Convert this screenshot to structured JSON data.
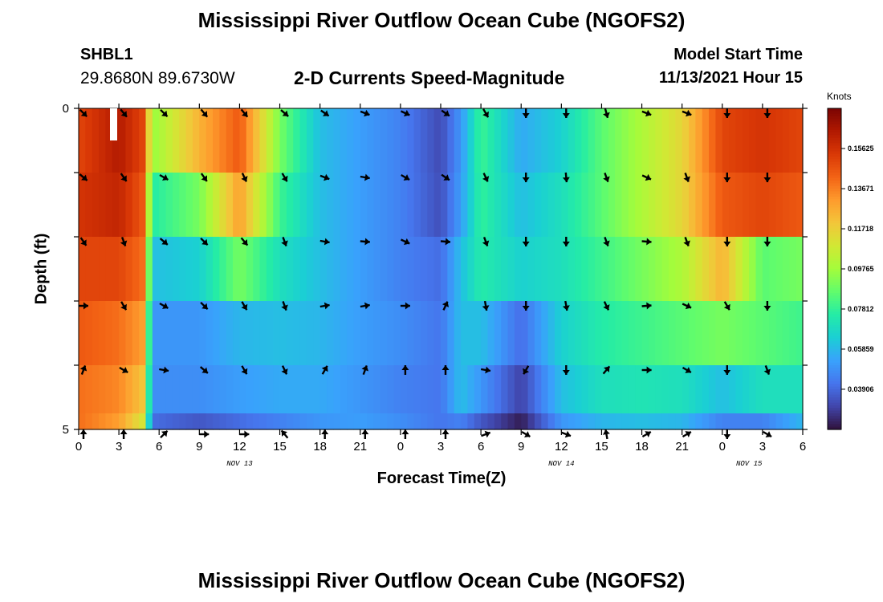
{
  "header": {
    "title": "Mississippi River Outflow Ocean Cube (NGOFS2)",
    "station": "SHBL1",
    "coordinates": "29.8680N  89.6730W",
    "subtitle": "2-D Currents Speed-Magnitude",
    "start_label": "Model Start Time",
    "start_value": "11/13/2021 Hour 15"
  },
  "footer": {
    "title": "Mississippi River Outflow Ocean Cube (NGOFS2)"
  },
  "chart_data": {
    "type": "heatmap",
    "title": "2-D Currents Speed-Magnitude",
    "xlabel": "Forecast Time(Z)",
    "ylabel": "Depth (ft)",
    "x_range_hours": [
      0,
      54
    ],
    "y_range": [
      0,
      5
    ],
    "x_tick_labels": [
      "0",
      "3",
      "6",
      "9",
      "12",
      "15",
      "18",
      "21",
      "0",
      "3",
      "6",
      "9",
      "12",
      "15",
      "18",
      "21",
      "0",
      "3",
      "6"
    ],
    "y_tick_labels": [
      "0",
      "5"
    ],
    "date_labels": [
      {
        "text": "NOV 13",
        "hour": 12
      },
      {
        "text": "NOV 14",
        "hour": 36
      },
      {
        "text": "NOV 15",
        "hour": 50
      }
    ],
    "colorbar": {
      "unit": "Knots",
      "min": 0.0195,
      "max": 0.1758,
      "tick_values": [
        0.15625,
        0.13671,
        0.11718,
        0.09765,
        0.07812,
        0.05859,
        0.03906
      ],
      "tick_labels": [
        "0.15625",
        "0.13671",
        "0.11718",
        "0.09765",
        "0.07812",
        "0.05859",
        "0.03906"
      ],
      "colors": [
        "#30123b",
        "#4145ab",
        "#4675ed",
        "#39a2fc",
        "#1bcfd4",
        "#24eca6",
        "#61fc6c",
        "#a4fc3b",
        "#d1e834",
        "#f3c63a",
        "#fe9b2d",
        "#f36315",
        "#d93806",
        "#b11901",
        "#7a0403"
      ]
    },
    "depth_layers": [
      0.5,
      1.5,
      2.5,
      3.5,
      4.5,
      5.0
    ],
    "speed_nodes_hours": [
      0,
      3,
      4.8,
      5.5,
      9,
      12,
      15,
      18,
      21,
      24,
      27,
      28.5,
      30,
      33,
      36,
      39,
      42,
      45,
      48,
      51,
      54
    ],
    "speed_rows": [
      [
        0.15,
        0.164,
        0.15,
        0.095,
        0.125,
        0.145,
        0.09,
        0.06,
        0.052,
        0.045,
        0.032,
        0.05,
        0.08,
        0.055,
        0.065,
        0.085,
        0.1,
        0.115,
        0.15,
        0.155,
        0.15
      ],
      [
        0.155,
        0.16,
        0.145,
        0.075,
        0.09,
        0.13,
        0.08,
        0.06,
        0.052,
        0.045,
        0.033,
        0.052,
        0.078,
        0.06,
        0.07,
        0.085,
        0.1,
        0.115,
        0.145,
        0.15,
        0.145
      ],
      [
        0.15,
        0.15,
        0.14,
        0.06,
        0.065,
        0.09,
        0.07,
        0.06,
        0.052,
        0.045,
        0.04,
        0.06,
        0.075,
        0.065,
        0.07,
        0.08,
        0.09,
        0.1,
        0.125,
        0.085,
        0.09
      ],
      [
        0.145,
        0.14,
        0.13,
        0.05,
        0.05,
        0.058,
        0.06,
        0.058,
        0.052,
        0.048,
        0.042,
        0.06,
        0.06,
        0.04,
        0.065,
        0.075,
        0.08,
        0.085,
        0.09,
        0.085,
        0.08
      ],
      [
        0.14,
        0.135,
        0.12,
        0.048,
        0.048,
        0.052,
        0.055,
        0.055,
        0.05,
        0.045,
        0.042,
        0.06,
        0.05,
        0.03,
        0.06,
        0.07,
        0.072,
        0.07,
        0.06,
        0.07,
        0.07
      ],
      [
        0.14,
        0.13,
        0.11,
        0.04,
        0.035,
        0.04,
        0.045,
        0.05,
        0.052,
        0.048,
        0.042,
        0.045,
        0.035,
        0.022,
        0.05,
        0.058,
        0.06,
        0.058,
        0.045,
        0.045,
        0.058
      ]
    ],
    "vector_hours": [
      0,
      3,
      6,
      9,
      12,
      15,
      18,
      21,
      24,
      27,
      30,
      33,
      36,
      39,
      42,
      45,
      48,
      51
    ],
    "vector_depths": [
      0,
      1,
      2,
      3,
      4,
      5
    ],
    "vector_directions_deg": [
      [
        135,
        140,
        135,
        140,
        140,
        130,
        125,
        110,
        115,
        125,
        150,
        180,
        180,
        165,
        110,
        110,
        180,
        180
      ],
      [
        130,
        145,
        120,
        145,
        155,
        150,
        110,
        100,
        120,
        125,
        155,
        180,
        175,
        160,
        115,
        160,
        180,
        180
      ],
      [
        145,
        160,
        130,
        135,
        140,
        160,
        100,
        95,
        115,
        95,
        160,
        180,
        180,
        160,
        95,
        160,
        180,
        180
      ],
      [
        90,
        150,
        120,
        135,
        150,
        160,
        80,
        80,
        90,
        25,
        170,
        180,
        170,
        155,
        85,
        115,
        150,
        180
      ],
      [
        20,
        120,
        100,
        130,
        150,
        155,
        30,
        20,
        0,
        0,
        100,
        210,
        180,
        40,
        90,
        120,
        180,
        160
      ],
      [
        0,
        0,
        45,
        90,
        90,
        320,
        0,
        0,
        0,
        0,
        70,
        120,
        110,
        350,
        60,
        60,
        180,
        120
      ]
    ]
  }
}
